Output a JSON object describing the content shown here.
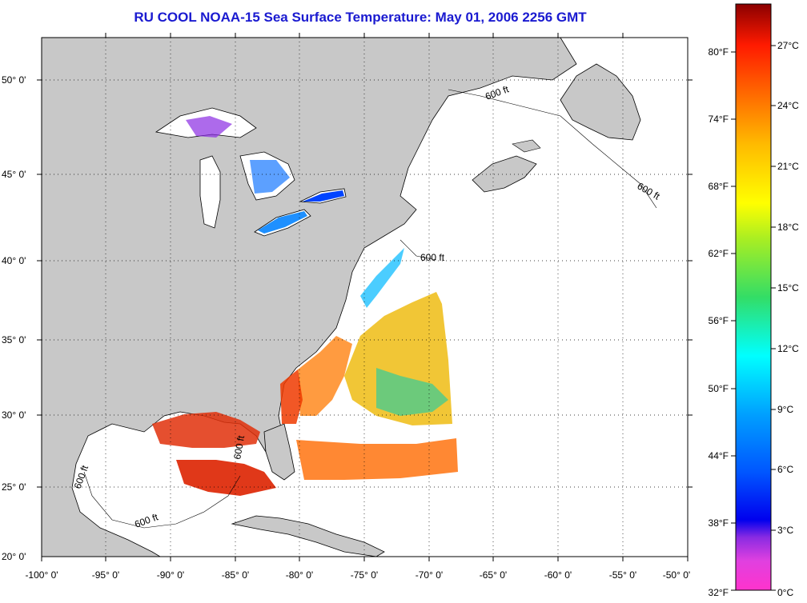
{
  "title": "RU COOL  NOAA-15  Sea Surface Temperature:  May 01, 2006 2256 GMT",
  "lat_labels": [
    "50° 0'",
    "45° 0'",
    "40° 0'",
    "35° 0'",
    "30° 0'",
    "25° 0'",
    "20° 0'"
  ],
  "lon_labels": [
    "-100° 0'",
    "-95° 0'",
    "-90° 0'",
    "-85° 0'",
    "-80° 0'",
    "-75° 0'",
    "-70° 0'",
    "-65° 0'",
    "-60° 0'",
    "-55° 0'",
    "-50° 0'"
  ],
  "isobath_label": "600 ft",
  "colorbar": {
    "fahrenheit": [
      "80°F",
      "74°F",
      "68°F",
      "62°F",
      "56°F",
      "50°F",
      "44°F",
      "38°F",
      "32°F"
    ],
    "celsius": [
      "27°C",
      "24°C",
      "21°C",
      "18°C",
      "15°C",
      "12°C",
      "9°C",
      "6°C",
      "3°C",
      "0°C"
    ]
  },
  "colors": {
    "land": "#c8c8c8",
    "ocean": "#ffffff",
    "title": "#1a1ad0",
    "colorbar_stops": [
      "#8b0000",
      "#ff2a00",
      "#ff9900",
      "#ffff00",
      "#22cc55",
      "#00ffff",
      "#0066ff",
      "#0000cc",
      "#8a2be2",
      "#ff00ff"
    ]
  }
}
